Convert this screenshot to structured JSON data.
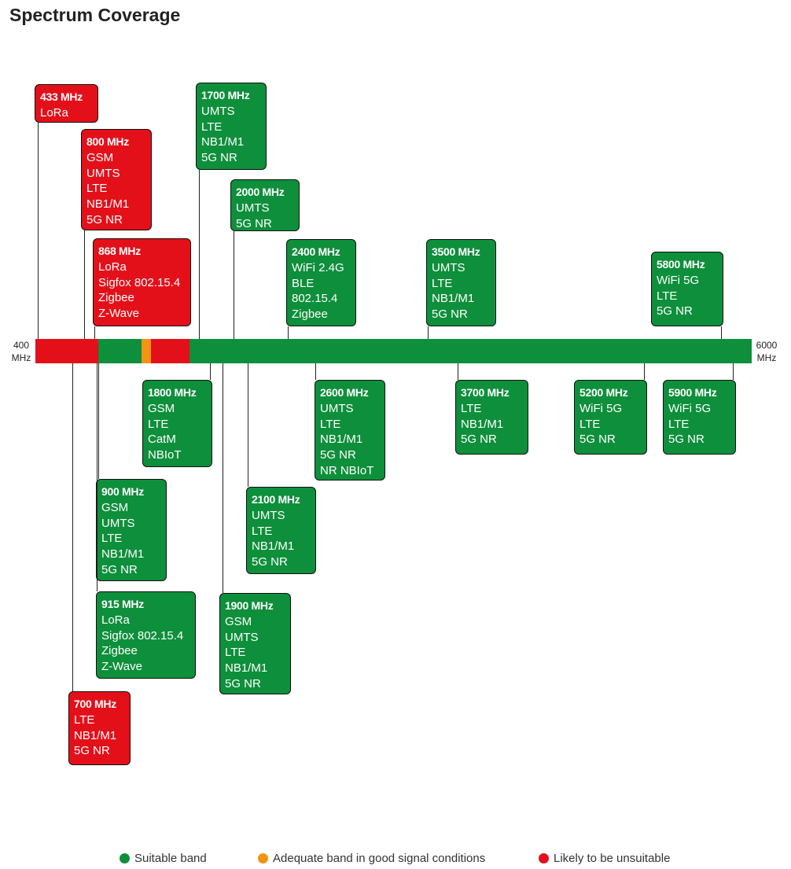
{
  "title": "Spectrum Coverage",
  "axis": {
    "start": "400",
    "end": "6000",
    "unit": "MHz"
  },
  "colors": {
    "suitable": "#0e8f3b",
    "adequate": "#f39314",
    "unsuitable": "#e3101a"
  },
  "segments": [
    {
      "status": "unsuitable"
    },
    {
      "status": "suitable"
    },
    {
      "status": "adequate"
    },
    {
      "status": "unsuitable"
    },
    {
      "status": "suitable"
    }
  ],
  "bands": [
    {
      "freq": "433 MHz",
      "tech": [
        "LoRa"
      ],
      "status": "unsuitable"
    },
    {
      "freq": "800 MHz",
      "tech": [
        "GSM",
        "UMTS",
        "LTE",
        "NB1/M1",
        "5G NR"
      ],
      "status": "unsuitable"
    },
    {
      "freq": "868 MHz",
      "tech": [
        "LoRa",
        "Sigfox 802.15.4",
        "Zigbee",
        "Z-Wave"
      ],
      "status": "unsuitable"
    },
    {
      "freq": "1700 MHz",
      "tech": [
        "UMTS",
        "LTE",
        "NB1/M1",
        "5G NR"
      ],
      "status": "suitable"
    },
    {
      "freq": "2000 MHz",
      "tech": [
        "UMTS",
        "5G NR"
      ],
      "status": "suitable"
    },
    {
      "freq": "2400 MHz",
      "tech": [
        "WiFi 2.4G",
        "BLE",
        "802.15.4",
        "Zigbee"
      ],
      "status": "suitable"
    },
    {
      "freq": "3500 MHz",
      "tech": [
        "UMTS",
        "LTE",
        "NB1/M1",
        "5G NR"
      ],
      "status": "suitable"
    },
    {
      "freq": "5800 MHz",
      "tech": [
        "WiFi 5G",
        "LTE",
        "5G NR"
      ],
      "status": "suitable"
    },
    {
      "freq": "1800 MHz",
      "tech": [
        "GSM",
        "LTE",
        "CatM",
        "NBIoT"
      ],
      "status": "suitable"
    },
    {
      "freq": "2600 MHz",
      "tech": [
        "UMTS",
        "LTE",
        "NB1/M1",
        "5G NR",
        "NR NBIoT"
      ],
      "status": "suitable"
    },
    {
      "freq": "3700 MHz",
      "tech": [
        "LTE",
        "NB1/M1",
        "5G NR"
      ],
      "status": "suitable"
    },
    {
      "freq": "5200 MHz",
      "tech": [
        "WiFi 5G",
        "LTE",
        "5G NR"
      ],
      "status": "suitable"
    },
    {
      "freq": "5900 MHz",
      "tech": [
        "WiFi 5G",
        "LTE",
        "5G NR"
      ],
      "status": "suitable"
    },
    {
      "freq": "900 MHz",
      "tech": [
        "GSM",
        "UMTS",
        "LTE",
        "NB1/M1",
        "5G NR"
      ],
      "status": "suitable"
    },
    {
      "freq": "2100 MHz",
      "tech": [
        "UMTS",
        "LTE",
        "NB1/M1",
        "5G NR"
      ],
      "status": "suitable"
    },
    {
      "freq": "915 MHz",
      "tech": [
        "LoRa",
        "Sigfox 802.15.4",
        "Zigbee",
        "Z-Wave"
      ],
      "status": "suitable"
    },
    {
      "freq": "1900 MHz",
      "tech": [
        "GSM",
        "UMTS",
        "LTE",
        "NB1/M1",
        "5G NR"
      ],
      "status": "suitable"
    },
    {
      "freq": "700 MHz",
      "tech": [
        "LTE",
        "NB1/M1",
        "5G NR"
      ],
      "status": "unsuitable"
    }
  ],
  "legend": [
    {
      "label": "Suitable band",
      "status": "suitable"
    },
    {
      "label": "Adequate band in good signal conditions",
      "status": "adequate"
    },
    {
      "label": "Likely to be unsuitable",
      "status": "unsuitable"
    }
  ]
}
